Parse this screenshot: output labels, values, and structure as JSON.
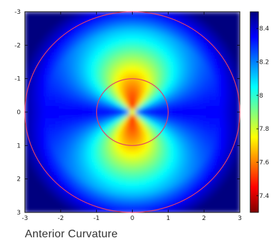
{
  "chart_data": {
    "type": "heatmap",
    "caption": "Anterior Curvature",
    "x": {
      "lim": [
        -3,
        3
      ],
      "ticks": [
        "-3",
        "-2",
        "-1",
        "0",
        "1",
        "2",
        "3"
      ]
    },
    "y": {
      "lim": [
        -3,
        3
      ],
      "reversed": true,
      "ticks": [
        "-3",
        "-2",
        "-1",
        "0",
        "1",
        "2",
        "3"
      ]
    },
    "colorbar": {
      "lim": [
        7.3,
        8.5
      ],
      "ticks": [
        "8.4",
        "8.2",
        "8",
        "7.8",
        "7.6",
        "7.4"
      ],
      "colormap": [
        "#00007f",
        "#0000ff",
        "#0080ff",
        "#00ffff",
        "#80ff80",
        "#ffff00",
        "#ff8000",
        "#ff0000",
        "#7f0000"
      ],
      "reversed": true
    },
    "circles": [
      {
        "radius": 3,
        "color": "#e0406a"
      },
      {
        "radius": 1,
        "color": "#e0406a"
      }
    ],
    "grid": false
  }
}
